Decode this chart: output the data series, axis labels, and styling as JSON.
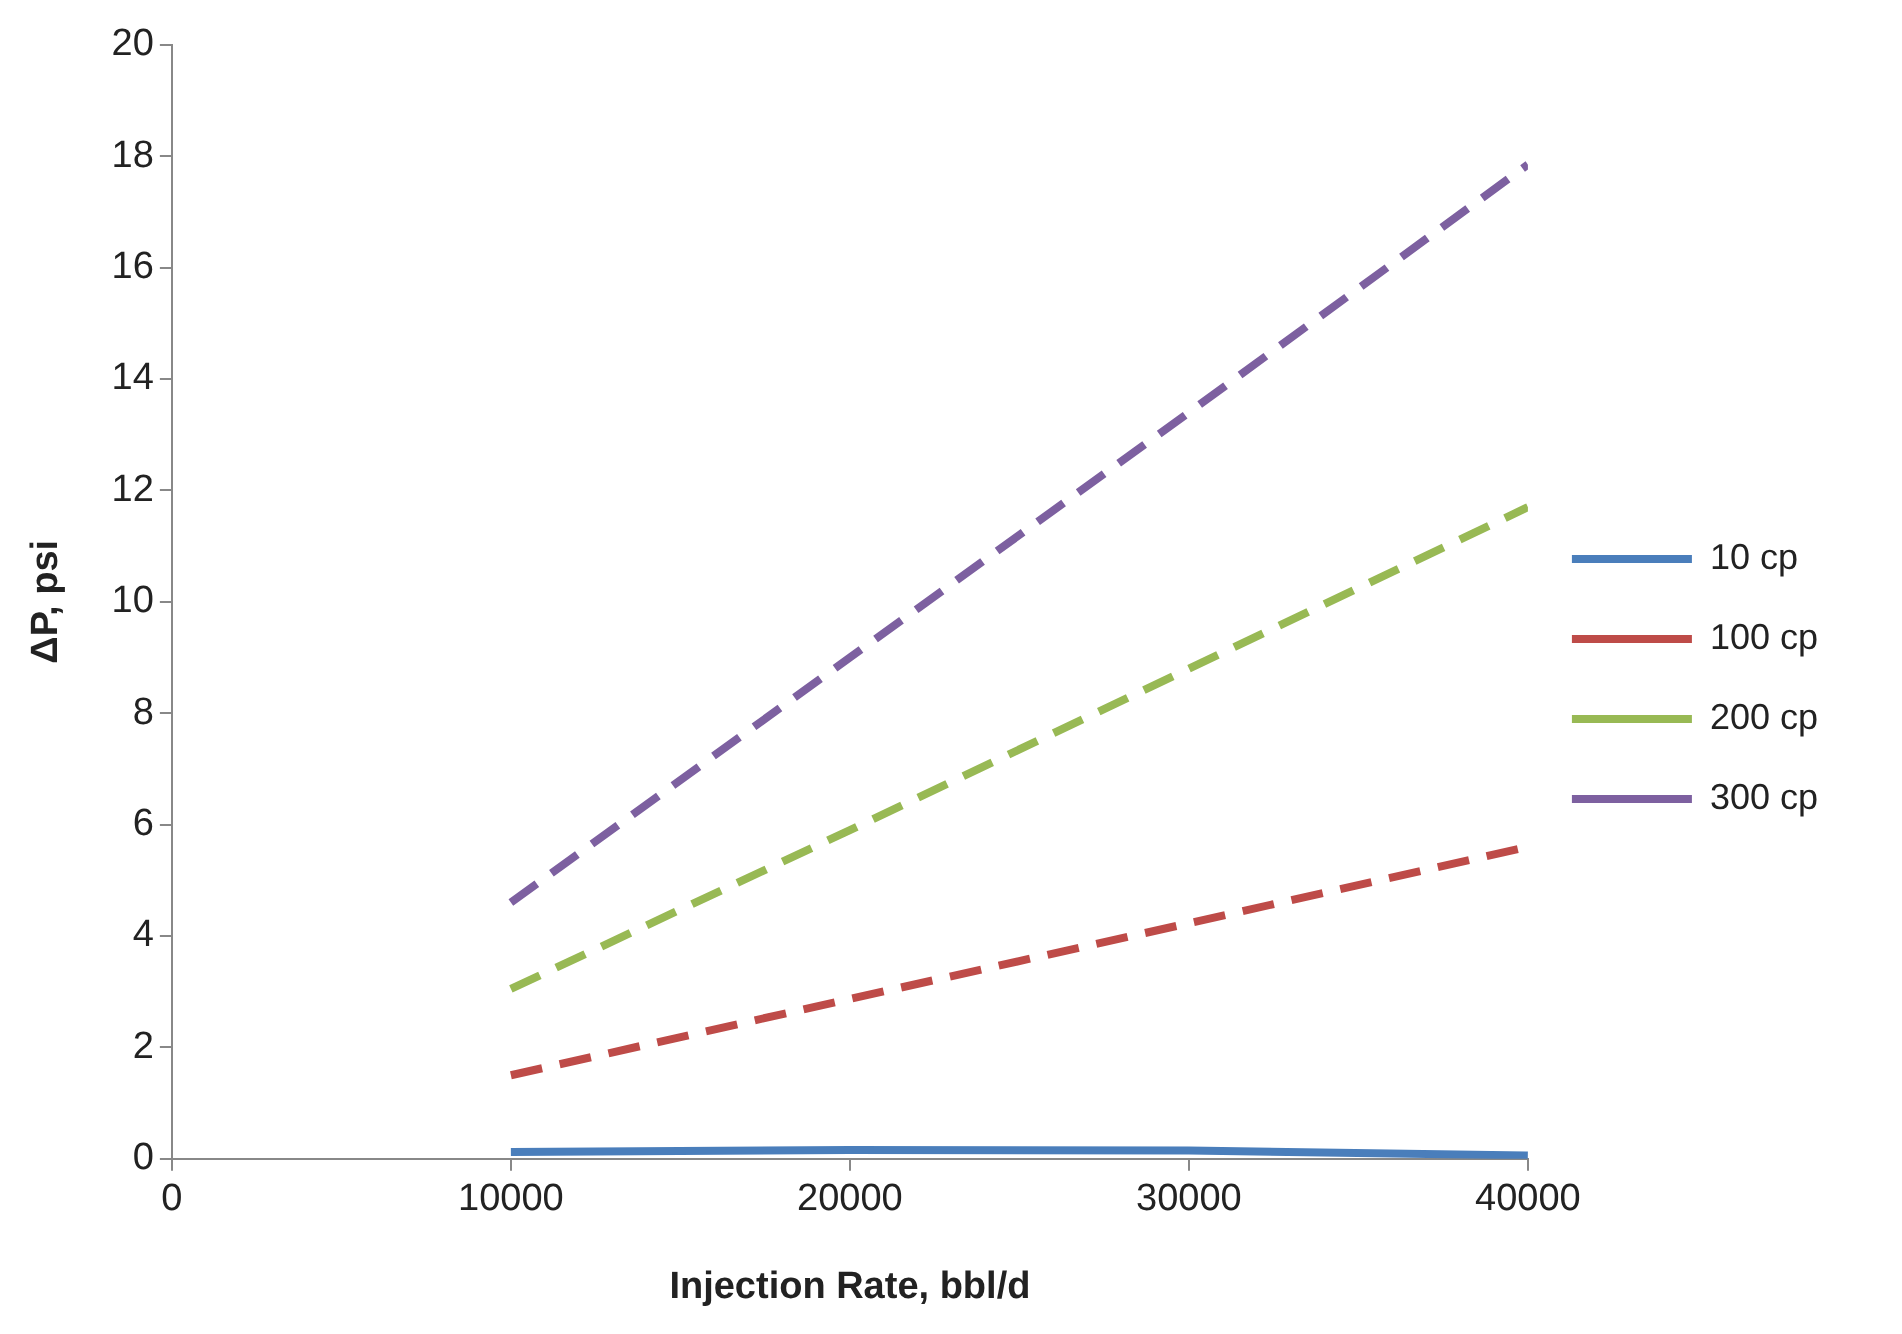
{
  "chart_data": {
    "type": "line",
    "xlabel": "Injection Rate, bbl/d",
    "ylabel": "ΔP, psi",
    "x": [
      10000,
      20000,
      30000,
      40000
    ],
    "series": [
      {
        "name": "10 cp",
        "color": "#4a7ebb",
        "values": [
          0.12,
          0.16,
          0.15,
          0.06
        ],
        "line_style": "solid"
      },
      {
        "name": "100 cp",
        "color": "#be4b48",
        "values": [
          1.5,
          2.87,
          4.23,
          5.6
        ],
        "line_style": "dashed"
      },
      {
        "name": "200 cp",
        "color": "#98b954",
        "values": [
          3.05,
          5.9,
          8.8,
          11.7
        ],
        "line_style": "dashed"
      },
      {
        "name": "300 cp",
        "color": "#7d60a0",
        "values": [
          4.6,
          9.0,
          13.4,
          17.85
        ],
        "line_style": "dashed"
      }
    ],
    "xlim": [
      0,
      40000
    ],
    "xticks": [
      0,
      10000,
      20000,
      30000,
      40000
    ],
    "ylim": [
      0,
      20
    ],
    "yticks": [
      0,
      2,
      4,
      6,
      8,
      10,
      12,
      14,
      16,
      18,
      20
    ],
    "grid": false,
    "legend": "right",
    "marker": "none"
  }
}
